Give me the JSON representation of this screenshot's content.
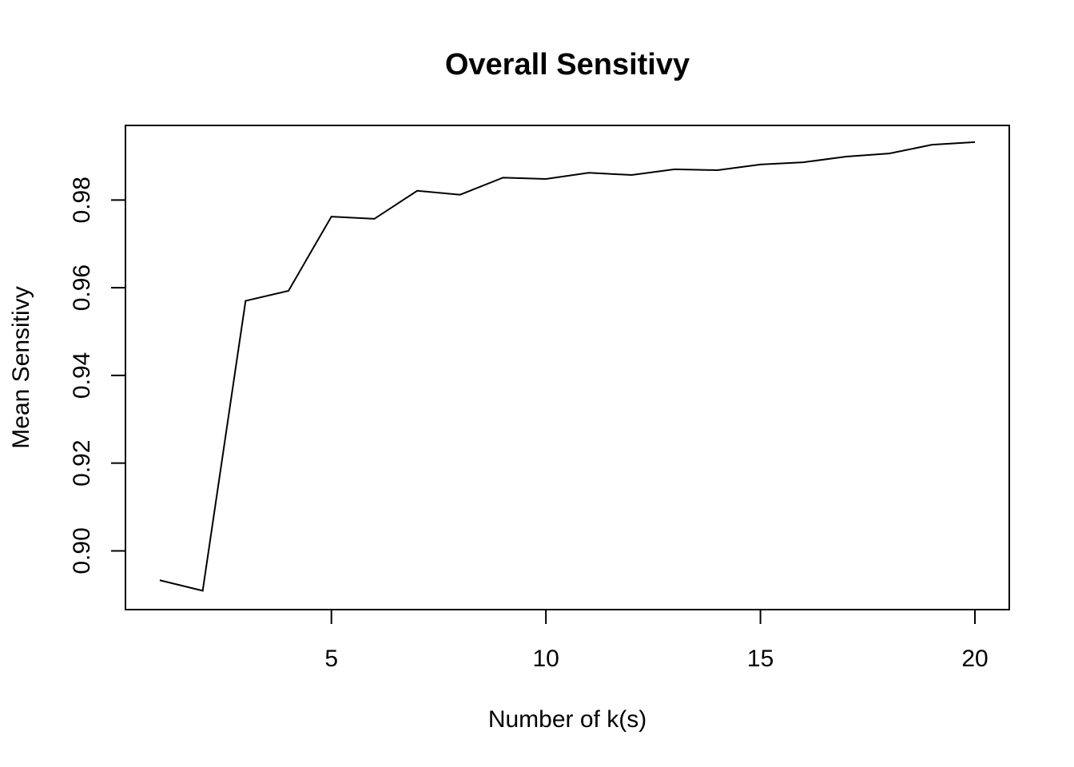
{
  "chart_data": {
    "type": "line",
    "title": "Overall Sensitivy",
    "xlabel": "Number of k(s)",
    "ylabel": "Mean Sensitivy",
    "xlim": [
      0.2,
      20.8
    ],
    "ylim": [
      0.8866,
      0.997
    ],
    "x_ticks": [
      5,
      10,
      15,
      20
    ],
    "x_tick_labels": [
      "5",
      "10",
      "15",
      "20"
    ],
    "y_ticks": [
      0.9,
      0.92,
      0.94,
      0.96,
      0.98
    ],
    "y_tick_labels": [
      "0.90",
      "0.92",
      "0.94",
      "0.96",
      "0.98"
    ],
    "grid": false,
    "series": [
      {
        "color": "#000000",
        "x": [
          1,
          2,
          3,
          4,
          5,
          6,
          7,
          8,
          9,
          10,
          11,
          12,
          13,
          14,
          15,
          16,
          17,
          18,
          19,
          20
        ],
        "y": [
          0.8933,
          0.8909,
          0.957,
          0.9593,
          0.9762,
          0.9757,
          0.9821,
          0.9812,
          0.9851,
          0.9848,
          0.9862,
          0.9857,
          0.987,
          0.9868,
          0.9881,
          0.9886,
          0.9899,
          0.9906,
          0.9926,
          0.9932
        ]
      }
    ]
  }
}
